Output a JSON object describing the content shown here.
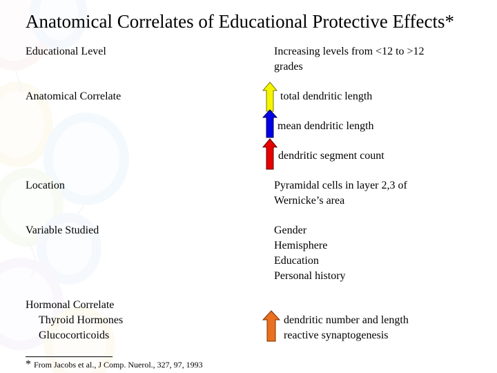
{
  "title": "Anatomical Correlates of Educational Protective Effects*",
  "rows": {
    "educational_level": {
      "label": "Educational Level",
      "value_line1": "Increasing levels from <12 to >12",
      "value_line2": "grades"
    },
    "anatomical_correlate": {
      "label": "Anatomical Correlate",
      "items": [
        {
          "text": "total dendritic length",
          "arrow_color": "#f5f500",
          "arrow_icon": "up-arrow-icon"
        },
        {
          "text": "mean dendritic length",
          "arrow_color": "#0000e6",
          "arrow_icon": "up-arrow-icon"
        },
        {
          "text": "dendritic segment count",
          "arrow_color": "#e60000",
          "arrow_icon": "up-arrow-icon"
        }
      ]
    },
    "location": {
      "label": "Location",
      "value_line1": "Pyramidal cells in layer 2,3  of",
      "value_line2": "Wernicke’s area"
    },
    "variable_studied": {
      "label": "Variable Studied",
      "values": [
        "Gender",
        "Hemisphere",
        "Education",
        "Personal history"
      ]
    },
    "hormonal_correlate": {
      "label": "Hormonal Correlate",
      "sub_items": [
        "Thyroid Hormones",
        "Glucocorticoids"
      ],
      "arrow_color": "#e87020",
      "arrow_icon": "up-arrow-icon",
      "value_line1": "dendritic number and length",
      "value_line2": "reactive synaptogenesis"
    }
  },
  "footnote": {
    "marker": "*",
    "text": "From Jacobs et al., J Comp. Nuerol., 327, 97, 1993"
  }
}
